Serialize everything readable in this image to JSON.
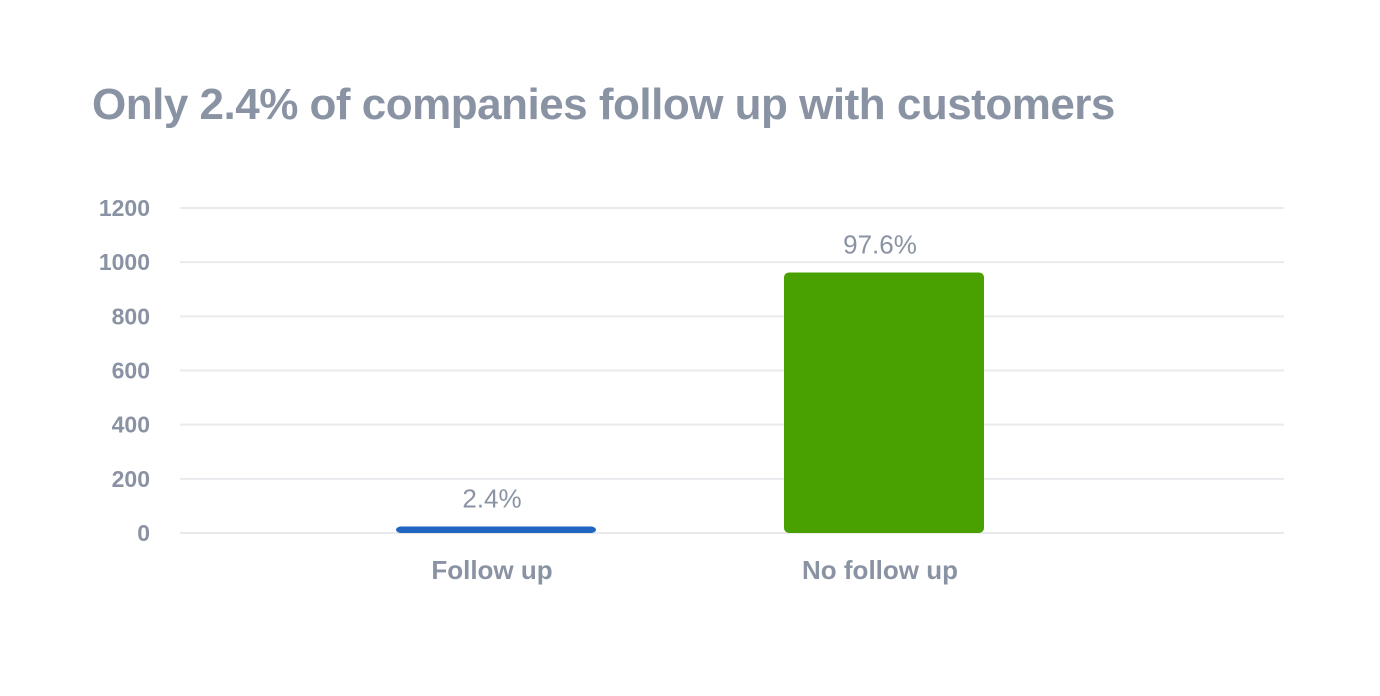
{
  "chart_data": {
    "type": "bar",
    "title": "Only 2.4% of companies follow up with customers",
    "xlabel": "",
    "ylabel": "",
    "categories": [
      "Follow up",
      "No follow up"
    ],
    "values": [
      24,
      962
    ],
    "data_labels": [
      "2.4%",
      "97.6%"
    ],
    "colors": [
      "#1f65c1",
      "#48a100"
    ],
    "ylim": [
      0,
      1200
    ],
    "yticks": [
      0,
      200,
      400,
      600,
      800,
      1000,
      1200
    ],
    "ytick_labels": [
      "0",
      "200",
      "400",
      "600",
      "800",
      "1000",
      "1200"
    ],
    "grid": true,
    "legend": "none"
  }
}
